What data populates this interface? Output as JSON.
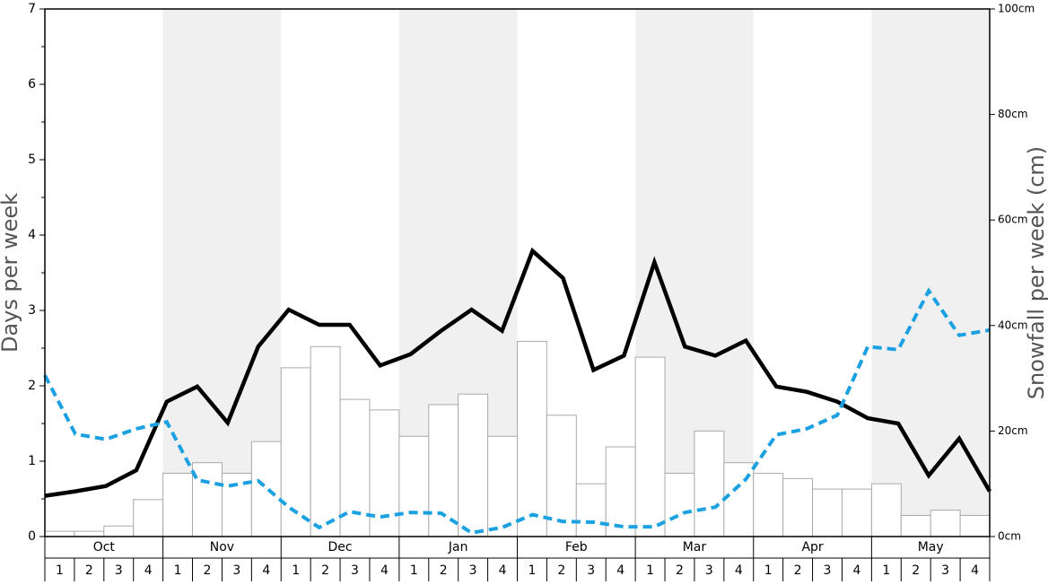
{
  "chart_data": {
    "type": "bar-line",
    "y_label": "Days per week",
    "y2_label": "Snowfall per week (cm)",
    "months": [
      "Oct",
      "Nov",
      "Dec",
      "Jan",
      "Feb",
      "Mar",
      "Apr",
      "May"
    ],
    "categories": [
      "1",
      "2",
      "3",
      "4",
      "1",
      "2",
      "3",
      "4",
      "1",
      "2",
      "3",
      "4",
      "1",
      "2",
      "3",
      "4",
      "1",
      "2",
      "3",
      "4",
      "1",
      "2",
      "3",
      "4",
      "1",
      "2",
      "3",
      "4",
      "1",
      "2",
      "3",
      "4"
    ],
    "ylim": [
      0,
      7
    ],
    "yticks": [
      0,
      1,
      2,
      3,
      4,
      5,
      6,
      7
    ],
    "y2lim": [
      0,
      100
    ],
    "y2ticks": [
      {
        "value": 0,
        "label": "0cm"
      },
      {
        "value": 20,
        "label": "20cm"
      },
      {
        "value": 40,
        "label": "40cm"
      },
      {
        "value": 60,
        "label": "60cm"
      },
      {
        "value": 80,
        "label": "80cm"
      },
      {
        "value": 100,
        "label": "100cm"
      }
    ],
    "series": [
      {
        "kind": "bar",
        "axis": "y2",
        "color": "#ffffff",
        "values": [
          1,
          1,
          2,
          7,
          12,
          14,
          12,
          18,
          32,
          36,
          26,
          24,
          19,
          25,
          27,
          19,
          37,
          23,
          10,
          17,
          34,
          12,
          20,
          14,
          12,
          11,
          9,
          9,
          10,
          4,
          5,
          4
        ]
      },
      {
        "kind": "line",
        "color": "#000000",
        "values": [
          0.54,
          0.6,
          0.67,
          0.88,
          1.79,
          1.99,
          1.51,
          2.52,
          3.01,
          2.81,
          2.81,
          2.27,
          2.42,
          2.73,
          3.01,
          2.73,
          3.79,
          3.43,
          2.21,
          2.4,
          3.64,
          2.52,
          2.4,
          2.6,
          1.99,
          1.92,
          1.79,
          1.57,
          1.5,
          0.81,
          1.3,
          0.6
        ]
      },
      {
        "kind": "dashed",
        "color": "#1ba1e2",
        "values": [
          2.14,
          1.36,
          1.29,
          1.43,
          1.52,
          0.75,
          0.67,
          0.74,
          0.39,
          0.12,
          0.33,
          0.26,
          0.32,
          0.31,
          0.05,
          0.12,
          0.29,
          0.2,
          0.19,
          0.13,
          0.13,
          0.32,
          0.39,
          0.76,
          1.35,
          1.43,
          1.61,
          2.52,
          2.48,
          3.26,
          2.67,
          2.74
        ]
      }
    ]
  }
}
